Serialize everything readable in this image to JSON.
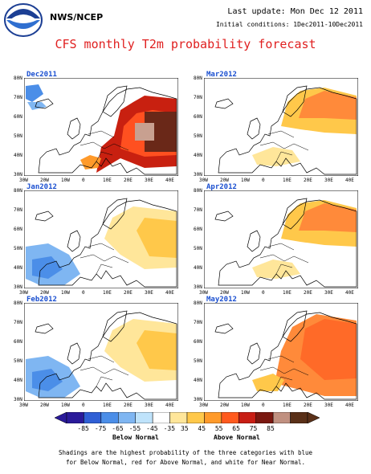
{
  "header": {
    "organization": "NWS/NCEP",
    "last_update": "Last update: Mon Dec 12 2011",
    "initial_conditions": "Initial conditions: 1Dec2011-10Dec2011",
    "title": "CFS monthly T2m probability forecast"
  },
  "panels": [
    {
      "id": "dec2011",
      "label": "Dec2011",
      "anomaly": "strong-warm-east",
      "highlight": [
        [
          "#ff5020",
          4
        ],
        [
          "#c82010",
          3
        ]
      ],
      "cold_west": true
    },
    {
      "id": "mar2012",
      "label": "Mar2012",
      "anomaly": "warm-north",
      "highlight": [
        [
          "#ff8a3a",
          3
        ],
        [
          "#ffc84a",
          2
        ]
      ]
    },
    {
      "id": "jan2012",
      "label": "Jan2012",
      "anomaly": "cool-southwest",
      "highlight": [
        [
          "#ffc84a",
          2
        ],
        [
          "#ffe69a",
          1
        ]
      ],
      "cold_sw": true
    },
    {
      "id": "apr2012",
      "label": "Apr2012",
      "anomaly": "warm-north",
      "highlight": [
        [
          "#ff8a3a",
          3
        ],
        [
          "#ffc84a",
          2
        ]
      ]
    },
    {
      "id": "feb2012",
      "label": "Feb2012",
      "anomaly": "mixed",
      "highlight": [
        [
          "#ffc84a",
          2
        ],
        [
          "#ffe69a",
          1
        ]
      ],
      "cold_sw": true
    },
    {
      "id": "may2012",
      "label": "May2012",
      "anomaly": "warm-east",
      "highlight": [
        [
          "#ff6a28",
          3
        ],
        [
          "#ff8a3a",
          2
        ]
      ]
    }
  ],
  "axes": {
    "lat_labels": [
      "80N",
      "70N",
      "60N",
      "50N",
      "40N",
      "30N"
    ],
    "lon_labels": [
      "30W",
      "20W",
      "10W",
      "0",
      "10E",
      "20E",
      "30E",
      "40E"
    ]
  },
  "colorbar": {
    "colors": [
      "#2a1a9a",
      "#2f5fd5",
      "#4b8ee8",
      "#7fb6f2",
      "#bfe3fb",
      "#ffffff",
      "#ffe69a",
      "#ffc84a",
      "#ff9a2a",
      "#ff5a1e",
      "#c81e14",
      "#7a1810",
      "#c09080",
      "#5a3018"
    ],
    "tick_labels": [
      "-85",
      "-75",
      "-65",
      "-55",
      "-45",
      "-35",
      "35",
      "45",
      "55",
      "65",
      "75",
      "85"
    ],
    "below_label": "Below Normal",
    "above_label": "Above Normal"
  },
  "footer": {
    "line1": "Shadings are the highest probability of the three categories with blue",
    "line2": "for Below Normal, red for Above Normal, and white for Near Normal."
  }
}
